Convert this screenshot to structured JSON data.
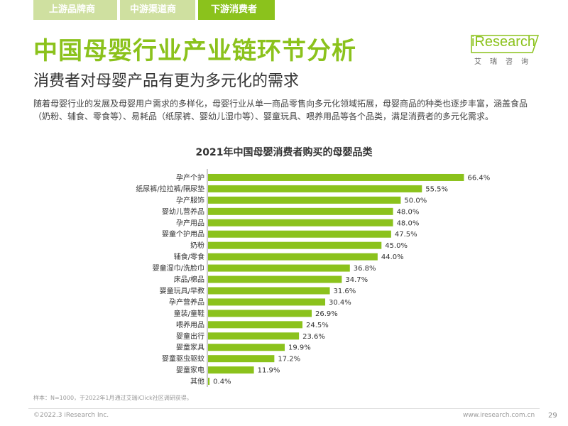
{
  "nav": {
    "tabs": [
      {
        "label": "上游品牌商"
      },
      {
        "label": "中游渠道商"
      },
      {
        "label": "下游消费者",
        "active": true
      }
    ]
  },
  "header": {
    "title": "中国母婴行业产业链环节分析",
    "subtitle": "消费者对母婴产品有更为多元化的需求",
    "logo_text": "iResearch",
    "logo_cn": "艾瑞咨询"
  },
  "description": "随着母婴行业的发展及母婴用户需求的多样化，母婴行业从单一商品零售向多元化领域拓展，母婴商品的种类也逐步丰富，涵盖食品（奶粉、辅食、零食等）、易耗品（纸尿裤、婴幼儿湿巾等）、婴童玩具、喂养用品等各个品类，满足消费者的多元化需求。",
  "chart_data": {
    "type": "bar",
    "orientation": "horizontal",
    "title": "2021年中国母婴消费者购买的母婴品类",
    "categories": [
      "孕产个护",
      "纸尿裤/拉拉裤/隔尿垫",
      "孕产服饰",
      "婴幼儿营养品",
      "孕产用品",
      "婴童个护用品",
      "奶粉",
      "辅食/零食",
      "婴童湿巾/洗脸巾",
      "床品/棉品",
      "婴童玩具/早教",
      "孕产营养品",
      "童装/童鞋",
      "喂养用品",
      "婴童出行",
      "婴童家具",
      "婴童驱虫驱蚊",
      "婴童家电",
      "其他"
    ],
    "values": [
      66.4,
      55.5,
      50.0,
      48.0,
      48.0,
      47.5,
      45.0,
      44.0,
      36.8,
      34.7,
      31.6,
      30.4,
      26.9,
      24.5,
      23.6,
      19.9,
      17.2,
      11.9,
      0.4
    ],
    "value_labels": [
      "66.4%",
      "55.5%",
      "50.0%",
      "48.0%",
      "48.0%",
      "47.5%",
      "45.0%",
      "44.0%",
      "36.8%",
      "34.7%",
      "31.6%",
      "30.4%",
      "26.9%",
      "24.5%",
      "23.6%",
      "19.9%",
      "17.2%",
      "11.9%",
      "0.4%"
    ],
    "xlim": [
      0,
      70
    ],
    "grid": false,
    "legend": false,
    "bar_color": "#8bc21c"
  },
  "footer": {
    "note": "样本：N=1000，于2022年1月通过艾瑞iClick社区调研获得。",
    "copyright": "©2022.3 iResearch Inc.",
    "website": "www.iresearch.com.cn",
    "page_number": "29"
  }
}
